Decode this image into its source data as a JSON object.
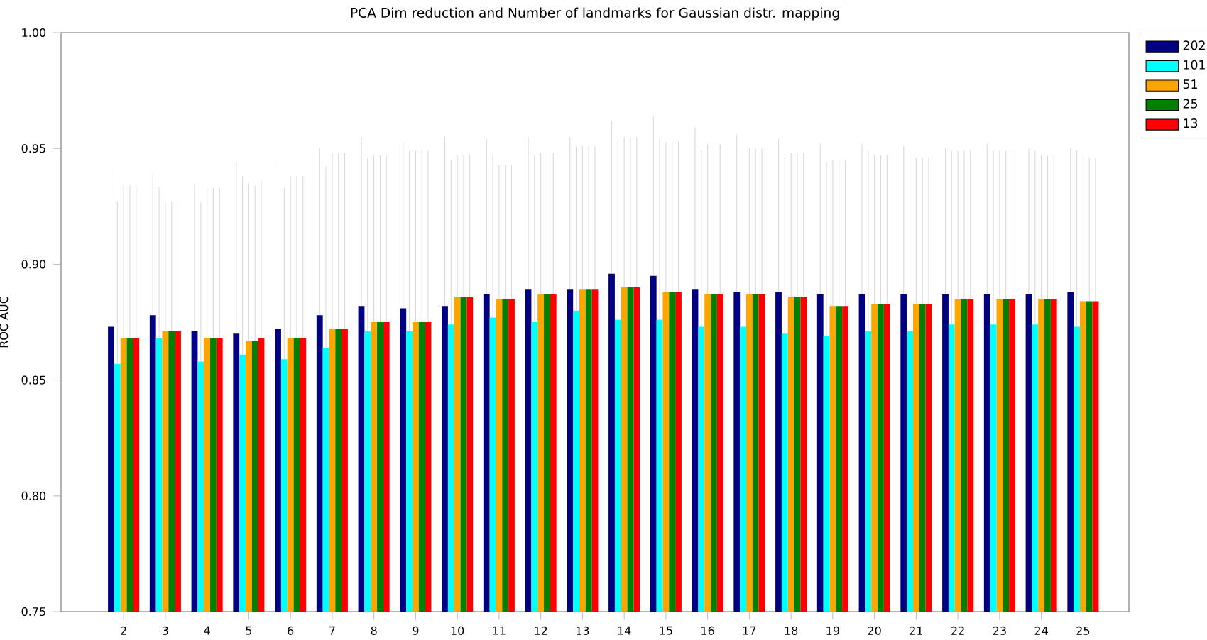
{
  "chart_data": {
    "type": "bar",
    "title": "PCA Dim reduction and Number of landmarks for Gaussian distr. mapping",
    "ylabel": "ROC AUC",
    "categories": [
      "2",
      "3",
      "4",
      "5",
      "6",
      "7",
      "8",
      "9",
      "10",
      "11",
      "12",
      "13",
      "14",
      "15",
      "16",
      "17",
      "18",
      "19",
      "20",
      "21",
      "22",
      "23",
      "24",
      "25"
    ],
    "ylim": [
      0.75,
      1.0
    ],
    "yticks": [
      {
        "value": 0.75,
        "label": "0.75"
      },
      {
        "value": 0.8,
        "label": "0.80"
      },
      {
        "value": 0.85,
        "label": "0.85"
      },
      {
        "value": 0.9,
        "label": "0.90"
      },
      {
        "value": 0.95,
        "label": "0.95"
      },
      {
        "value": 1.0,
        "label": "1.00"
      }
    ],
    "legend": "right",
    "grid": false,
    "series": [
      {
        "name": "202",
        "color": "#000080",
        "values": [
          0.873,
          0.878,
          0.871,
          0.87,
          0.872,
          0.878,
          0.882,
          0.881,
          0.882,
          0.887,
          0.889,
          0.889,
          0.896,
          0.895,
          0.889,
          0.888,
          0.888,
          0.887,
          0.887,
          0.887,
          0.887,
          0.887,
          0.887,
          0.888
        ],
        "errors": [
          0.07,
          0.061,
          0.064,
          0.074,
          0.072,
          0.072,
          0.073,
          0.072,
          0.073,
          0.067,
          0.066,
          0.066,
          0.066,
          0.069,
          0.07,
          0.068,
          0.066,
          0.065,
          0.065,
          0.064,
          0.063,
          0.065,
          0.063,
          0.062
        ]
      },
      {
        "name": "101",
        "color": "#00ffff",
        "values": [
          0.857,
          0.868,
          0.858,
          0.861,
          0.859,
          0.864,
          0.871,
          0.871,
          0.874,
          0.877,
          0.875,
          0.88,
          0.876,
          0.876,
          0.873,
          0.873,
          0.87,
          0.869,
          0.871,
          0.871,
          0.874,
          0.874,
          0.874,
          0.873
        ],
        "errors": [
          0.07,
          0.065,
          0.069,
          0.077,
          0.074,
          0.078,
          0.075,
          0.078,
          0.071,
          0.07,
          0.072,
          0.071,
          0.078,
          0.078,
          0.076,
          0.076,
          0.076,
          0.075,
          0.078,
          0.077,
          0.075,
          0.075,
          0.075,
          0.076
        ]
      },
      {
        "name": "51",
        "color": "#ffa500",
        "values": [
          0.868,
          0.871,
          0.868,
          0.867,
          0.868,
          0.872,
          0.875,
          0.875,
          0.886,
          0.885,
          0.887,
          0.889,
          0.89,
          0.888,
          0.887,
          0.887,
          0.886,
          0.882,
          0.883,
          0.883,
          0.885,
          0.885,
          0.885,
          0.884
        ],
        "errors": [
          0.066,
          0.056,
          0.065,
          0.068,
          0.07,
          0.076,
          0.072,
          0.074,
          0.061,
          0.058,
          0.061,
          0.062,
          0.065,
          0.065,
          0.065,
          0.063,
          0.062,
          0.063,
          0.064,
          0.063,
          0.064,
          0.064,
          0.062,
          0.062
        ]
      },
      {
        "name": "25",
        "color": "#008000",
        "values": [
          0.868,
          0.871,
          0.868,
          0.867,
          0.868,
          0.872,
          0.875,
          0.875,
          0.886,
          0.885,
          0.887,
          0.889,
          0.89,
          0.888,
          0.887,
          0.887,
          0.886,
          0.882,
          0.883,
          0.883,
          0.885,
          0.885,
          0.885,
          0.884
        ],
        "errors": [
          0.066,
          0.056,
          0.065,
          0.067,
          0.07,
          0.076,
          0.072,
          0.074,
          0.061,
          0.058,
          0.061,
          0.062,
          0.065,
          0.065,
          0.065,
          0.063,
          0.062,
          0.063,
          0.064,
          0.063,
          0.064,
          0.064,
          0.062,
          0.062
        ]
      },
      {
        "name": "13",
        "color": "#ff0000",
        "values": [
          0.868,
          0.871,
          0.868,
          0.868,
          0.868,
          0.872,
          0.875,
          0.875,
          0.886,
          0.885,
          0.887,
          0.889,
          0.89,
          0.888,
          0.887,
          0.887,
          0.886,
          0.882,
          0.883,
          0.883,
          0.885,
          0.885,
          0.885,
          0.884
        ],
        "errors": [
          0.066,
          0.056,
          0.065,
          0.068,
          0.07,
          0.076,
          0.072,
          0.074,
          0.061,
          0.058,
          0.061,
          0.062,
          0.065,
          0.065,
          0.065,
          0.063,
          0.062,
          0.063,
          0.064,
          0.063,
          0.064,
          0.064,
          0.062,
          0.062
        ]
      }
    ]
  }
}
